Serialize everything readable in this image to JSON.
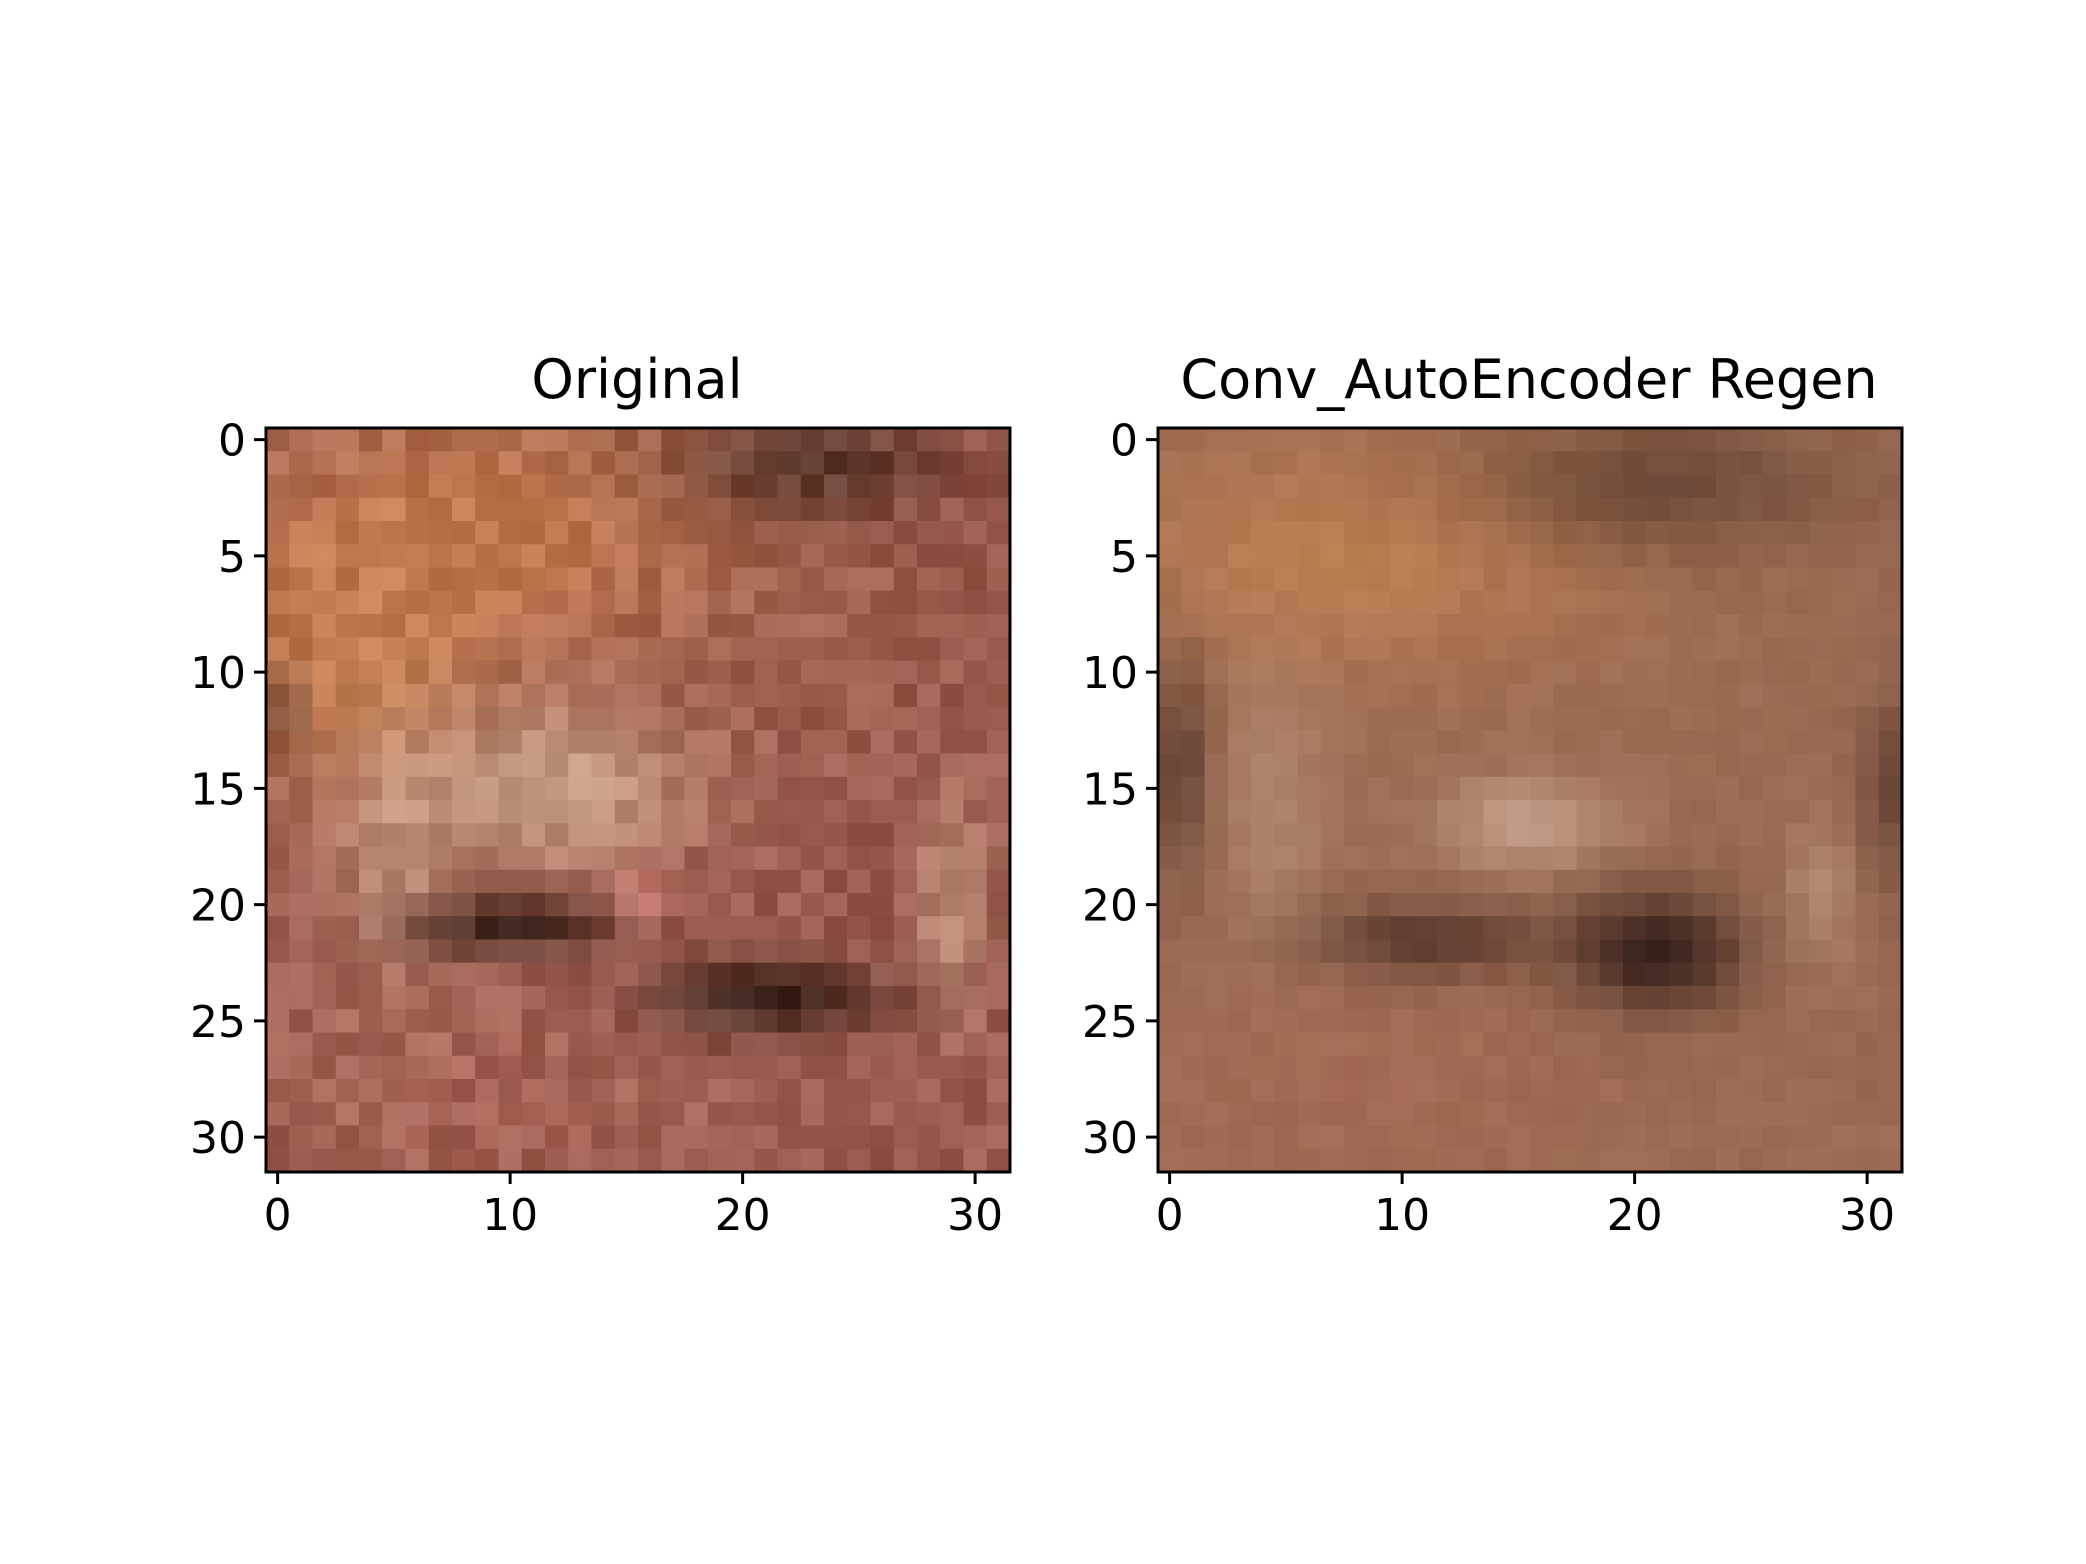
{
  "chart_data": [
    {
      "type": "heatmap",
      "subtype": "rgb-image",
      "title": "Original",
      "image_size": [
        32,
        32
      ],
      "xlim": [
        -0.5,
        31.5
      ],
      "ylim": [
        31.5,
        -0.5
      ],
      "x_ticks": [
        0,
        10,
        20,
        30
      ],
      "y_ticks": [
        0,
        5,
        10,
        15,
        20,
        25,
        30
      ],
      "x_tick_labels": [
        "0",
        "10",
        "20",
        "30"
      ],
      "y_tick_labels": [
        "0",
        "5",
        "10",
        "15",
        "20",
        "25",
        "30"
      ],
      "grid": false,
      "colors": {
        "background": "#9a5b4e",
        "upper_left_orange": "#c7804f",
        "frog_light": "#d4b095",
        "shadow_dark": "#2a1812",
        "frog_pink": "#d8827a",
        "lower_red": "#b26a5e"
      }
    },
    {
      "type": "heatmap",
      "subtype": "rgb-image",
      "title": "Conv_AutoEncoder Regen",
      "image_size": [
        32,
        32
      ],
      "xlim": [
        -0.5,
        31.5
      ],
      "ylim": [
        31.5,
        -0.5
      ],
      "x_ticks": [
        0,
        10,
        20,
        30
      ],
      "y_ticks": [
        0,
        5,
        10,
        15,
        20,
        25,
        30
      ],
      "x_tick_labels": [
        "0",
        "10",
        "20",
        "30"
      ],
      "y_tick_labels": [
        "0",
        "5",
        "10",
        "15",
        "20",
        "25",
        "30"
      ],
      "grid": false,
      "colors": {
        "background": "#9a6a52",
        "upper_orange": "#c48453",
        "frog_light": "#d2ac98",
        "shadow_dark": "#2b1714",
        "lower_red": "#a96a56"
      }
    }
  ]
}
